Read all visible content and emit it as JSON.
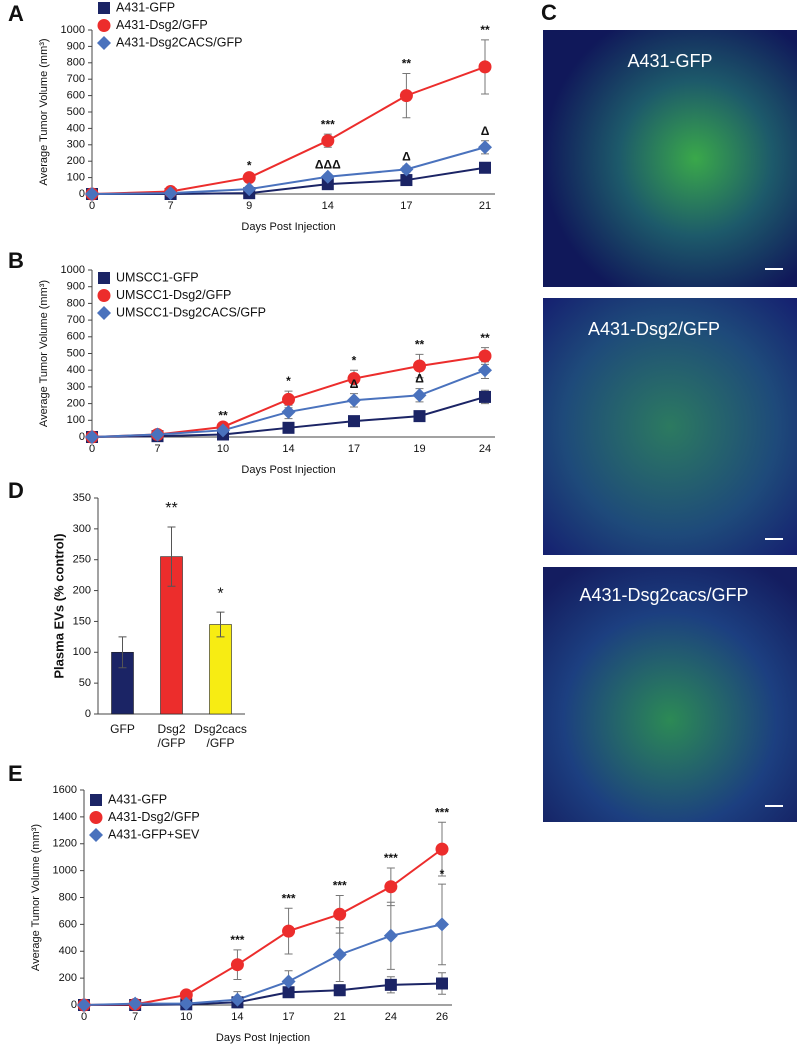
{
  "chart_data": [
    {
      "type": "line",
      "panel": "A",
      "x_label": "Days Post Injection",
      "y_label": "Average Tumor Volume (mm³)",
      "categories": [
        "0",
        "7",
        "9",
        "14",
        "17",
        "21"
      ],
      "ylim": [
        0,
        1000
      ],
      "yticks": [
        0,
        100,
        200,
        300,
        400,
        500,
        600,
        700,
        800,
        900,
        1000
      ],
      "series": [
        {
          "name": "A431-GFP",
          "color": "#1b2465",
          "marker": "square",
          "values": [
            0,
            0,
            5,
            60,
            85,
            160
          ],
          "errors": [
            0,
            0,
            3,
            10,
            15,
            30
          ],
          "annotations": [
            null,
            null,
            null,
            null,
            null,
            null
          ]
        },
        {
          "name": "A431-Dsg2/GFP",
          "color": "#ec2d2c",
          "marker": "circle",
          "values": [
            0,
            15,
            100,
            325,
            600,
            775
          ],
          "errors": [
            0,
            5,
            15,
            40,
            135,
            165
          ],
          "annotations": [
            null,
            null,
            "*",
            "***",
            "**",
            "**"
          ]
        },
        {
          "name": "A431-Dsg2CACS/GFP",
          "color": "#4a72bd",
          "marker": "diamond",
          "values": [
            0,
            5,
            30,
            105,
            150,
            285
          ],
          "errors": [
            0,
            3,
            8,
            15,
            20,
            40
          ],
          "annotations": [
            null,
            null,
            null,
            "ΔΔΔ",
            "Δ",
            "Δ"
          ]
        }
      ]
    },
    {
      "type": "line",
      "panel": "B",
      "x_label": "Days Post Injection",
      "y_label": "Average Tumor Volume (mm³)",
      "categories": [
        "0",
        "7",
        "10",
        "14",
        "17",
        "19",
        "24"
      ],
      "ylim": [
        0,
        1000
      ],
      "yticks": [
        0,
        100,
        200,
        300,
        400,
        500,
        600,
        700,
        800,
        900,
        1000
      ],
      "series": [
        {
          "name": "UMSCC1-GFP",
          "color": "#1b2465",
          "marker": "square",
          "values": [
            0,
            5,
            15,
            55,
            95,
            125,
            240
          ],
          "errors": [
            0,
            2,
            5,
            8,
            10,
            15,
            40
          ],
          "annotations": [
            null,
            null,
            null,
            null,
            null,
            null,
            null
          ]
        },
        {
          "name": "UMSCC1-Dsg2/GFP",
          "color": "#ec2d2c",
          "marker": "circle",
          "values": [
            0,
            15,
            60,
            225,
            350,
            425,
            485
          ],
          "errors": [
            0,
            5,
            10,
            50,
            50,
            70,
            50
          ],
          "annotations": [
            null,
            null,
            "**",
            "*",
            "*",
            "**",
            "**"
          ]
        },
        {
          "name": "UMSCC1-Dsg2CACS/GFP",
          "color": "#4a72bd",
          "marker": "diamond",
          "values": [
            0,
            15,
            40,
            150,
            220,
            250,
            400
          ],
          "errors": [
            0,
            3,
            8,
            40,
            40,
            40,
            50
          ],
          "annotations": [
            null,
            null,
            null,
            null,
            "Δ",
            "Δ",
            null
          ]
        }
      ]
    },
    {
      "type": "bar",
      "panel": "D",
      "y_label": "Plasma EVs (% control)",
      "categories": [
        [
          "GFP"
        ],
        [
          "Dsg2",
          "/GFP"
        ],
        [
          "Dsg2cacs",
          "/GFP"
        ]
      ],
      "values": [
        100,
        255,
        145
      ],
      "errors": [
        25,
        48,
        20
      ],
      "colors": [
        "#1b2465",
        "#ec2d2c",
        "#f7ec13"
      ],
      "annotations": [
        null,
        "**",
        "*"
      ],
      "ylim": [
        0,
        350
      ],
      "yticks": [
        0,
        50,
        100,
        150,
        200,
        250,
        300,
        350
      ]
    },
    {
      "type": "line",
      "panel": "E",
      "x_label": "Days Post Injection",
      "y_label": "Average Tumor Volume (mm³)",
      "categories": [
        "0",
        "7",
        "10",
        "14",
        "17",
        "21",
        "24",
        "26"
      ],
      "ylim": [
        0,
        1600
      ],
      "yticks": [
        0,
        200,
        400,
        600,
        800,
        1000,
        1200,
        1400,
        1600
      ],
      "series": [
        {
          "name": "A431-GFP",
          "color": "#1b2465",
          "marker": "square",
          "values": [
            0,
            0,
            5,
            20,
            95,
            110,
            150,
            160
          ],
          "errors": [
            0,
            0,
            5,
            10,
            25,
            40,
            60,
            80
          ],
          "annotations": [
            null,
            null,
            null,
            null,
            null,
            null,
            null,
            null
          ]
        },
        {
          "name": "A431-Dsg2/GFP",
          "color": "#ec2d2c",
          "marker": "circle",
          "values": [
            0,
            5,
            75,
            300,
            550,
            675,
            880,
            1160
          ],
          "errors": [
            0,
            5,
            10,
            110,
            170,
            140,
            140,
            200
          ],
          "annotations": [
            null,
            null,
            null,
            "***",
            "***",
            "***",
            "***",
            "***"
          ]
        },
        {
          "name": "A431-GFP+SEV",
          "color": "#4a72bd",
          "marker": "diamond",
          "values": [
            0,
            10,
            10,
            40,
            175,
            375,
            515,
            600
          ],
          "errors": [
            0,
            5,
            5,
            60,
            80,
            200,
            250,
            300
          ],
          "annotations": [
            null,
            null,
            null,
            null,
            null,
            null,
            null,
            "*"
          ]
        }
      ]
    }
  ],
  "image_panel": {
    "panel": "C",
    "images": [
      "A431-GFP",
      "A431-Dsg2/GFP",
      "A431-Dsg2cacs/GFP"
    ]
  }
}
